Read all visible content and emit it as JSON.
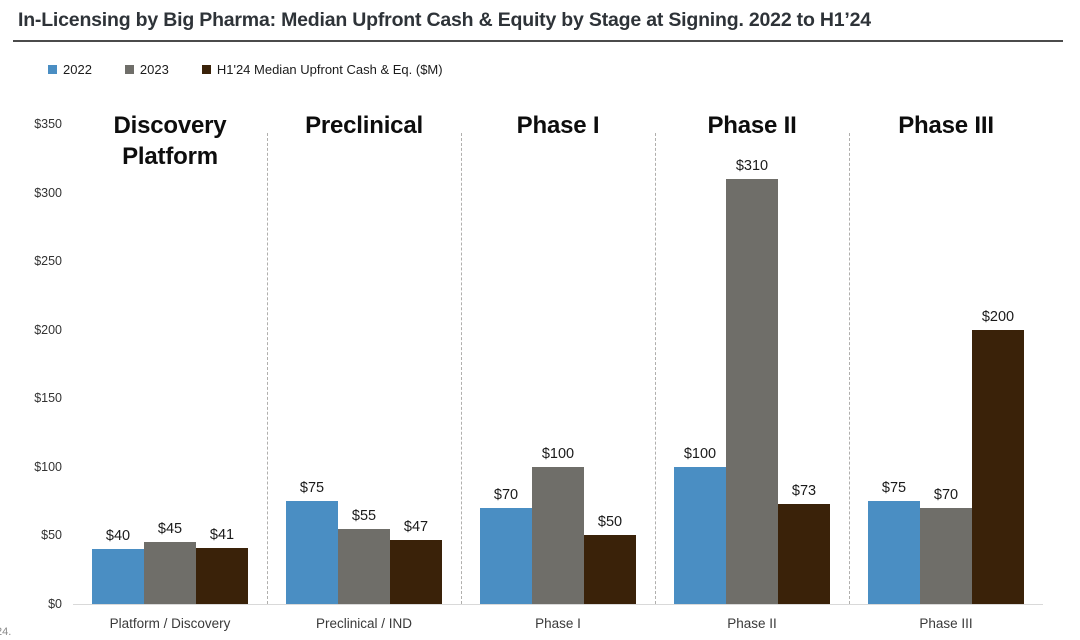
{
  "header": {
    "title": "In-Licensing by Big Pharma: Median Upfront Cash & Equity by Stage at Signing. 2022 to H1’24"
  },
  "footnote": {
    "text": "24."
  },
  "chart_data": {
    "type": "bar",
    "title": "In-Licensing by Big Pharma: Median Upfront Cash & Equity by Stage at Signing. 2022 to H1'24",
    "group_headers": [
      "Discovery Platform",
      "Preclinical",
      "Phase I",
      "Phase II",
      "Phase III"
    ],
    "categories": [
      "Platform / Discovery",
      "Preclinical / IND",
      "Phase I",
      "Phase II",
      "Phase III"
    ],
    "series": [
      {
        "name": "2022",
        "color": "#4a8ec3",
        "values": [
          40,
          75,
          70,
          100,
          75
        ]
      },
      {
        "name": "2023",
        "color": "#6f6e69",
        "values": [
          45,
          55,
          100,
          310,
          70
        ]
      },
      {
        "name": "H1'24 Median Upfront Cash & Eq. ($M)",
        "color": "#3a2209",
        "values": [
          41,
          47,
          50,
          73,
          200
        ]
      }
    ],
    "value_prefix": "$",
    "ylabel": "",
    "ylim": [
      0,
      350
    ],
    "ytick_step": 50,
    "ytick_labels": [
      "$0",
      "$50",
      "$100",
      "$150",
      "$200",
      "$250",
      "$300",
      "$350"
    ],
    "grid": false,
    "legend_position": "top-left",
    "group_dividers": "dashed"
  }
}
